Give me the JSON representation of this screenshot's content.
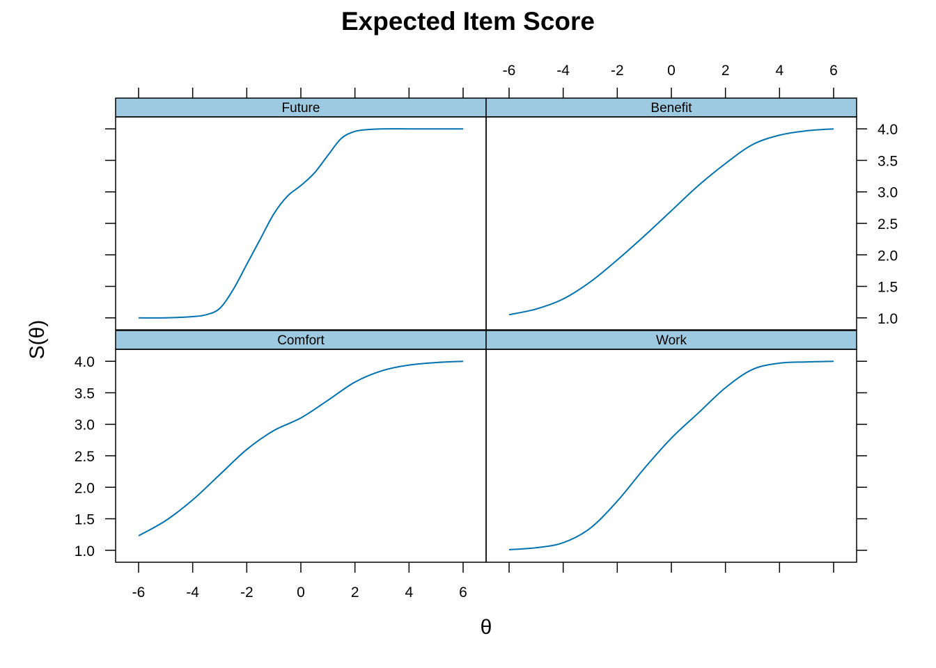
{
  "chart_data": {
    "type": "line",
    "title": "Expected Item Score",
    "xlabel": "θ",
    "ylabel": "S(θ)",
    "xlim": [
      -6.85,
      6.85
    ],
    "ylim": [
      0.81,
      4.19
    ],
    "x_ticks": [
      -6,
      -4,
      -2,
      0,
      2,
      4,
      6
    ],
    "x_tick_labels": [
      "-6",
      "-4",
      "-2",
      "0",
      "2",
      "4",
      "6"
    ],
    "y_ticks": [
      1.0,
      1.5,
      2.0,
      2.5,
      3.0,
      3.5,
      4.0
    ],
    "y_tick_labels": [
      "1.0",
      "1.5",
      "2.0",
      "2.5",
      "3.0",
      "3.5",
      "4.0"
    ],
    "line_color": "#0072b2",
    "strip_color": "#9ecae1",
    "layout": "2x2 panels",
    "panels": [
      {
        "name": "Future",
        "x": [
          -6,
          -5,
          -4,
          -3.5,
          -3,
          -2.5,
          -2,
          -1.5,
          -1,
          -0.5,
          0,
          0.5,
          1,
          1.5,
          2,
          2.5,
          3,
          4,
          5,
          6
        ],
        "y": [
          1.0,
          1.0,
          1.02,
          1.05,
          1.15,
          1.45,
          1.85,
          2.25,
          2.65,
          2.93,
          3.1,
          3.3,
          3.58,
          3.85,
          3.96,
          3.99,
          4.0,
          4.0,
          4.0,
          4.0
        ]
      },
      {
        "name": "Benefit",
        "x": [
          -6,
          -5,
          -4,
          -3,
          -2,
          -1,
          0,
          1,
          2,
          3,
          4,
          5,
          6
        ],
        "y": [
          1.05,
          1.14,
          1.3,
          1.57,
          1.92,
          2.3,
          2.7,
          3.1,
          3.45,
          3.75,
          3.9,
          3.97,
          4.0
        ]
      },
      {
        "name": "Comfort",
        "x": [
          -6,
          -5,
          -4,
          -3,
          -2,
          -1,
          0,
          1,
          2,
          3,
          4,
          5,
          6
        ],
        "y": [
          1.23,
          1.47,
          1.8,
          2.2,
          2.6,
          2.9,
          3.1,
          3.38,
          3.67,
          3.85,
          3.94,
          3.98,
          4.0
        ]
      },
      {
        "name": "Work",
        "x": [
          -6,
          -5,
          -4,
          -3,
          -2,
          -1,
          0,
          1,
          2,
          3,
          4,
          5,
          6
        ],
        "y": [
          1.01,
          1.04,
          1.12,
          1.35,
          1.78,
          2.3,
          2.78,
          3.18,
          3.58,
          3.87,
          3.97,
          3.99,
          4.0
        ]
      }
    ]
  }
}
